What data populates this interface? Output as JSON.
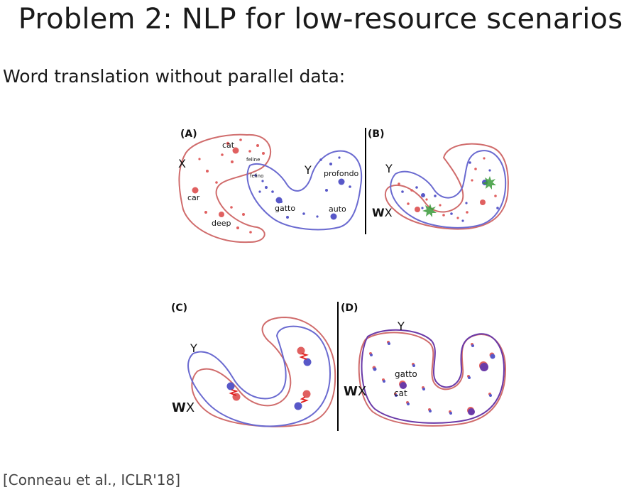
{
  "slide": {
    "title": "Problem 2: NLP for low-resource scenarios",
    "subtitle": "Word translation without parallel data:",
    "citation": "[Conneau et al., ICLR'18]"
  },
  "panels": {
    "a": {
      "label": "(A)",
      "space_x": "X",
      "space_y": "Y",
      "words_x": [
        "cat",
        "feline",
        "car",
        "deep"
      ],
      "words_y": [
        "felino",
        "profondo",
        "gatto",
        "auto"
      ]
    },
    "b": {
      "label": "(B)",
      "space_y": "Y",
      "space_wx_bold": "W",
      "space_wx_rest": "X"
    },
    "c": {
      "label": "(C)",
      "space_y": "Y",
      "space_wx_bold": "W",
      "space_wx_rest": "X"
    },
    "d": {
      "label": "(D)",
      "space_y": "Y",
      "space_wx_bold": "W",
      "space_wx_rest": "X",
      "words": [
        "gatto",
        "cat"
      ]
    }
  },
  "colors": {
    "source_red": "#d06c6c",
    "target_blue": "#6a6ad0",
    "point_red": "#e06060",
    "point_blue": "#5858c8",
    "star_green": "#3a9a3a",
    "zigzag_red": "#e02020",
    "divider": "#000000"
  }
}
